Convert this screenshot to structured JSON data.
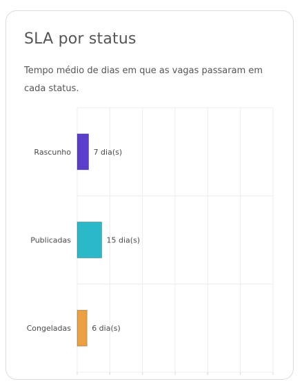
{
  "card": {
    "title": "SLA por status",
    "subtitle": "Tempo médio de dias em que as vagas passaram em cada status."
  },
  "chart_data": {
    "type": "bar",
    "orientation": "horizontal",
    "categories": [
      "Rascunho",
      "Publicadas",
      "Congeladas"
    ],
    "values": [
      7,
      15,
      6
    ],
    "value_labels": [
      "7 dia(s)",
      "15 dia(s)",
      "6 dia(s)"
    ],
    "colors": [
      "#5b3fcc",
      "#2bb8c9",
      "#eba043"
    ],
    "xlim": [
      0,
      120
    ],
    "grid": true,
    "xlabel": "",
    "ylabel": ""
  }
}
